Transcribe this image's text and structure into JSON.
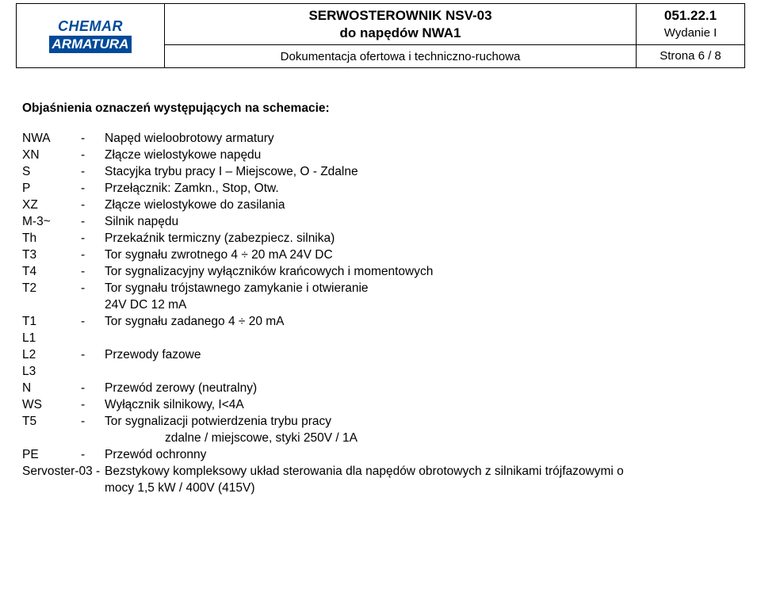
{
  "header": {
    "logo_top": "CHEMAR",
    "logo_bottom": "ARMATURA",
    "title_line1": "SERWOSTEROWNIK NSV-03",
    "title_line2": "do napędów NWA1",
    "code": "051.22.1",
    "edition": "Wydanie I",
    "subtitle": "Dokumentacja ofertowa i techniczno-ruchowa",
    "page": "Strona 6 / 8"
  },
  "section_title": "Objaśnienia oznaczeń występujących na schemacie:",
  "defs": [
    {
      "sym": "NWA",
      "dash": "-",
      "desc": "Napęd wieloobrotowy armatury"
    },
    {
      "sym": "XN",
      "dash": "-",
      "desc": "Złącze wielostykowe napędu"
    },
    {
      "sym": "S",
      "dash": "-",
      "desc": "Stacyjka trybu pracy  I – Miejscowe, O - Zdalne"
    },
    {
      "sym": "P",
      "dash": "-",
      "desc": "Przełącznik: Zamkn., Stop, Otw."
    },
    {
      "sym": "XZ",
      "dash": "-",
      "desc": "Złącze wielostykowe do zasilania"
    },
    {
      "sym": "M-3~",
      "dash": "-",
      "desc": "Silnik napędu"
    },
    {
      "sym": "Th",
      "dash": "-",
      "desc": "Przekaźnik termiczny (zabezpiecz. silnika)"
    },
    {
      "sym": "T3",
      "dash": "-",
      "desc": "Tor sygnału zwrotnego 4 ÷ 20 mA  24V DC"
    },
    {
      "sym": "T4",
      "dash": "-",
      "desc": "Tor sygnalizacyjny wyłączników krańcowych i momentowych"
    },
    {
      "sym": "T2",
      "dash": "-",
      "desc": "Tor sygnału trójstawnego zamykanie i otwieranie"
    },
    {
      "sym": "",
      "dash": "",
      "desc": "24V DC  12 mA"
    },
    {
      "sym": "T1",
      "dash": "-",
      "desc": "Tor sygnału zadanego 4 ÷ 20 mA"
    },
    {
      "sym": "L1",
      "dash": "",
      "desc": ""
    },
    {
      "sym": "L2",
      "dash": "-",
      "desc": "Przewody fazowe"
    },
    {
      "sym": "L3",
      "dash": "",
      "desc": ""
    },
    {
      "sym": "N",
      "dash": "-",
      "desc": "Przewód zerowy (neutralny)"
    },
    {
      "sym": "WS",
      "dash": "-",
      "desc": "Wyłącznik silnikowy, I<4A"
    },
    {
      "sym": "T5",
      "dash": "-",
      "desc": "Tor sygnalizacji potwierdzenia trybu pracy"
    },
    {
      "sym": "",
      "dash": "",
      "desc": "",
      "indent_text": "zdalne / miejscowe, styki 250V / 1A"
    },
    {
      "sym": "PE",
      "dash": "-",
      "desc": "Przewód ochronny"
    }
  ],
  "servoster": {
    "label": "Servoster-03  -",
    "desc_line1": "Bezstykowy kompleksowy układ sterowania dla napędów obrotowych z silnikami trójfazowymi o",
    "desc_line2": "mocy 1,5 kW / 400V (415V)"
  }
}
